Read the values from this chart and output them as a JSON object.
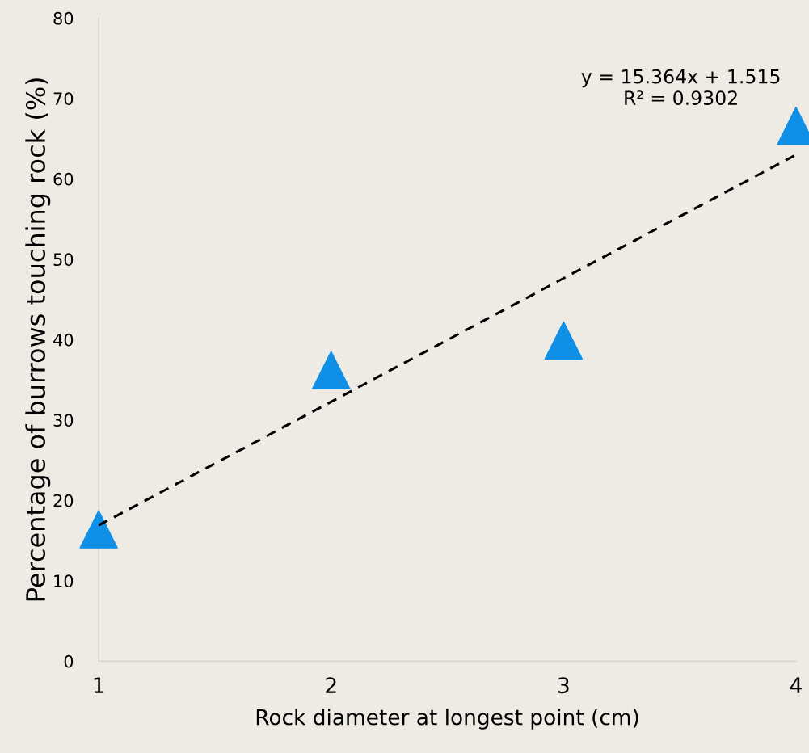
{
  "chart_data": {
    "type": "scatter",
    "xlabel": "Rock diameter at longest point (cm)",
    "ylabel": "Percentage of burrows touching rock (%)",
    "x": [
      1,
      2,
      3,
      4
    ],
    "series": [
      {
        "color": "#0f8fe6",
        "marker": "triangle",
        "values": [
          16.4,
          36.2,
          39.9,
          66.6
        ]
      },
      {
        "type": "line",
        "color": "#000000",
        "line_style": "dashed",
        "marker": "none",
        "x": [
          1,
          4
        ],
        "values": [
          16.9,
          63.0
        ]
      }
    ],
    "xlim": [
      1,
      4
    ],
    "xticks": [
      1,
      2,
      3,
      4
    ],
    "ylim": [
      0,
      80
    ],
    "yticks": [
      0,
      10,
      20,
      30,
      40,
      50,
      60,
      70,
      80
    ],
    "grid": false,
    "legend": false,
    "annotations": [
      "y = 15.364x + 1.515\nR² = 0.9302"
    ]
  }
}
